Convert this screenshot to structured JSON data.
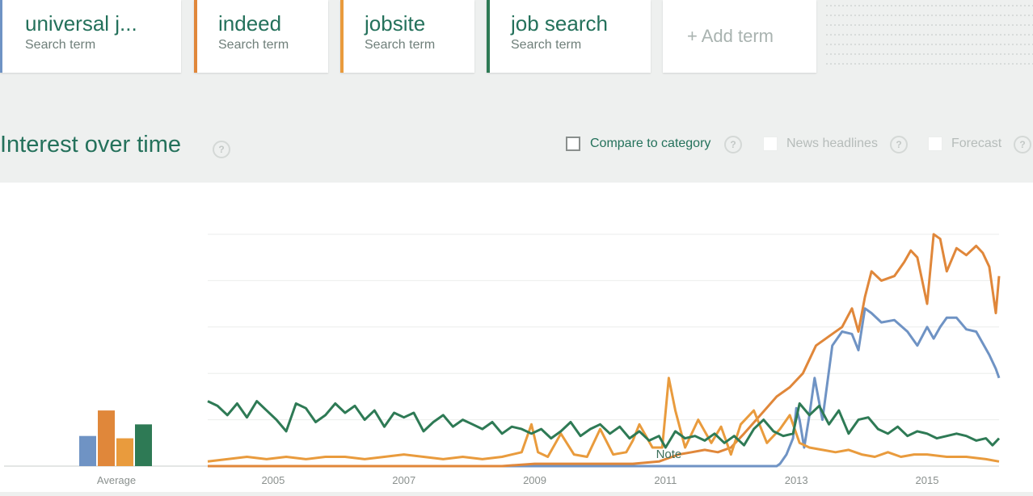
{
  "terms": [
    {
      "name": "universal j...",
      "sub": "Search term",
      "color": "#6f93c4"
    },
    {
      "name": "indeed",
      "sub": "Search term",
      "color": "#e0873a"
    },
    {
      "name": "jobsite",
      "sub": "Search term",
      "color": "#e99b3d"
    },
    {
      "name": "job search",
      "sub": "Search term",
      "color": "#2e7a55"
    }
  ],
  "add_term": "+ Add term",
  "section": {
    "title": "Interest over time",
    "help": "?",
    "compare_label": "Compare to category",
    "news_label": "News headlines",
    "forecast_label": "Forecast"
  },
  "chart_data": {
    "type": "line",
    "title": "",
    "xlabel": "",
    "ylabel": "",
    "x_range": [
      2004.0,
      2016.1
    ],
    "ylim": [
      0,
      100
    ],
    "grid": true,
    "x_ticks": [
      "2005",
      "2007",
      "2009",
      "2011",
      "2013",
      "2015"
    ],
    "x_tick_values": [
      2005,
      2007,
      2009,
      2011,
      2013,
      2015
    ],
    "note_label": "Note",
    "note_x": 2011.05,
    "average_label": "Average",
    "averages": [
      {
        "series": "universal j...",
        "value": 13,
        "color": "#6f93c4"
      },
      {
        "series": "indeed",
        "value": 24,
        "color": "#e0873a"
      },
      {
        "series": "jobsite",
        "value": 12,
        "color": "#e99b3d"
      },
      {
        "series": "job search",
        "value": 18,
        "color": "#2e7a55"
      }
    ],
    "series": [
      {
        "name": "universal j...",
        "color": "#6f93c4",
        "x": [
          2004.0,
          2012.7,
          2012.75,
          2012.85,
          2012.95,
          2013.0,
          2013.05,
          2013.12,
          2013.2,
          2013.28,
          2013.4,
          2013.55,
          2013.7,
          2013.85,
          2013.95,
          2014.05,
          2014.15,
          2014.3,
          2014.5,
          2014.7,
          2014.85,
          2015.0,
          2015.1,
          2015.2,
          2015.3,
          2015.45,
          2015.6,
          2015.75,
          2015.85,
          2015.95,
          2016.05,
          2016.1
        ],
        "y": [
          0,
          0,
          1,
          5,
          12,
          25,
          20,
          8,
          22,
          38,
          20,
          52,
          58,
          57,
          50,
          68,
          66,
          62,
          63,
          58,
          52,
          60,
          55,
          60,
          64,
          64,
          59,
          58,
          53,
          48,
          42,
          38
        ]
      },
      {
        "name": "indeed",
        "color": "#e0873a",
        "x": [
          2004.0,
          2008.5,
          2009.0,
          2009.5,
          2010.0,
          2010.5,
          2010.9,
          2011.0,
          2011.1,
          2011.2,
          2011.4,
          2011.6,
          2011.8,
          2012.0,
          2012.2,
          2012.45,
          2012.7,
          2012.9,
          2013.1,
          2013.3,
          2013.5,
          2013.7,
          2013.85,
          2013.95,
          2014.05,
          2014.15,
          2014.3,
          2014.5,
          2014.65,
          2014.75,
          2014.85,
          2015.0,
          2015.1,
          2015.2,
          2015.3,
          2015.45,
          2015.6,
          2015.75,
          2015.85,
          2015.95,
          2016.05,
          2016.1
        ],
        "y": [
          0,
          0,
          1,
          1,
          1,
          1,
          2,
          3,
          4,
          5,
          6,
          7,
          6,
          8,
          14,
          22,
          30,
          34,
          40,
          52,
          56,
          60,
          68,
          58,
          73,
          84,
          80,
          82,
          88,
          93,
          90,
          70,
          100,
          98,
          84,
          94,
          91,
          95,
          92,
          86,
          66,
          82
        ]
      },
      {
        "name": "jobsite",
        "color": "#e99b3d",
        "x": [
          2004.0,
          2004.3,
          2004.6,
          2004.9,
          2005.2,
          2005.5,
          2005.8,
          2006.1,
          2006.4,
          2006.7,
          2007.0,
          2007.3,
          2007.6,
          2007.9,
          2008.2,
          2008.5,
          2008.8,
          2008.95,
          2009.05,
          2009.2,
          2009.4,
          2009.6,
          2009.8,
          2010.0,
          2010.2,
          2010.4,
          2010.5,
          2010.6,
          2010.8,
          2010.95,
          2011.05,
          2011.15,
          2011.3,
          2011.5,
          2011.7,
          2011.85,
          2012.0,
          2012.15,
          2012.35,
          2012.55,
          2012.75,
          2012.9,
          2013.05,
          2013.2,
          2013.4,
          2013.6,
          2013.8,
          2014.0,
          2014.2,
          2014.4,
          2014.6,
          2014.8,
          2015.0,
          2015.3,
          2015.6,
          2015.9,
          2016.1
        ],
        "y": [
          2,
          3,
          4,
          3,
          4,
          3,
          4,
          4,
          3,
          4,
          5,
          4,
          3,
          4,
          3,
          4,
          6,
          18,
          6,
          4,
          14,
          5,
          4,
          16,
          5,
          6,
          11,
          18,
          8,
          8,
          38,
          24,
          8,
          20,
          10,
          17,
          5,
          18,
          24,
          10,
          16,
          22,
          10,
          8,
          7,
          6,
          7,
          5,
          4,
          6,
          4,
          5,
          5,
          4,
          4,
          3,
          2
        ]
      },
      {
        "name": "job search",
        "color": "#2e7a55",
        "x": [
          2004.0,
          2004.15,
          2004.3,
          2004.45,
          2004.6,
          2004.75,
          2004.9,
          2005.05,
          2005.2,
          2005.35,
          2005.5,
          2005.65,
          2005.8,
          2005.95,
          2006.1,
          2006.25,
          2006.4,
          2006.55,
          2006.7,
          2006.85,
          2007.0,
          2007.15,
          2007.3,
          2007.45,
          2007.6,
          2007.75,
          2007.9,
          2008.05,
          2008.2,
          2008.35,
          2008.5,
          2008.65,
          2008.8,
          2008.95,
          2009.1,
          2009.25,
          2009.4,
          2009.55,
          2009.7,
          2009.85,
          2010.0,
          2010.15,
          2010.3,
          2010.45,
          2010.6,
          2010.75,
          2010.9,
          2011.0,
          2011.15,
          2011.3,
          2011.45,
          2011.6,
          2011.75,
          2011.9,
          2012.05,
          2012.2,
          2012.35,
          2012.5,
          2012.65,
          2012.8,
          2012.95,
          2013.05,
          2013.2,
          2013.35,
          2013.5,
          2013.65,
          2013.8,
          2013.95,
          2014.1,
          2014.25,
          2014.4,
          2014.55,
          2014.7,
          2014.85,
          2015.0,
          2015.15,
          2015.3,
          2015.45,
          2015.6,
          2015.75,
          2015.9,
          2016.0,
          2016.1
        ],
        "y": [
          28,
          26,
          22,
          27,
          21,
          28,
          24,
          20,
          15,
          27,
          25,
          19,
          22,
          27,
          23,
          26,
          20,
          24,
          17,
          23,
          21,
          23,
          15,
          19,
          22,
          17,
          20,
          18,
          16,
          19,
          14,
          17,
          16,
          14,
          16,
          12,
          15,
          19,
          13,
          16,
          18,
          14,
          17,
          12,
          15,
          11,
          13,
          8,
          15,
          12,
          13,
          11,
          14,
          10,
          13,
          9,
          16,
          20,
          15,
          13,
          14,
          27,
          22,
          26,
          18,
          24,
          14,
          20,
          21,
          16,
          14,
          17,
          13,
          15,
          14,
          12,
          13,
          14,
          13,
          11,
          12,
          9,
          12
        ]
      }
    ]
  }
}
